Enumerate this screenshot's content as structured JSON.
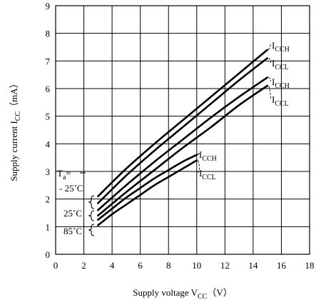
{
  "chart_data": {
    "type": "line",
    "xlabel_main": "Supply voltage V",
    "xlabel_sub": "CC",
    "xlabel_unit": "（V）",
    "ylabel_main": "Supply current I",
    "ylabel_sub": "CC",
    "ylabel_unit": "（mA）",
    "xlim": [
      0,
      18
    ],
    "ylim": [
      0,
      9
    ],
    "x_ticks": [
      0,
      2,
      4,
      6,
      8,
      10,
      12,
      14,
      16,
      18
    ],
    "y_ticks": [
      0,
      1,
      2,
      3,
      4,
      5,
      6,
      7,
      8,
      9
    ],
    "x_tick_labels": [
      "0",
      "2",
      "4",
      "6",
      "8",
      "10",
      "12",
      "14",
      "16",
      "18"
    ],
    "y_tick_labels": [
      "0",
      "1",
      "2",
      "3",
      "4",
      "5",
      "6",
      "7",
      "8",
      "9"
    ],
    "grid": true,
    "series": [
      {
        "name": "I_CCH",
        "x": [
          3,
          5,
          7,
          9,
          11,
          13,
          15
        ],
        "y": [
          2.1,
          3.1,
          4.0,
          4.85,
          5.7,
          6.55,
          7.4
        ]
      },
      {
        "name": "I_CCL",
        "x": [
          3,
          5,
          7,
          9,
          11,
          13,
          15
        ],
        "y": [
          1.85,
          2.85,
          3.75,
          4.6,
          5.45,
          6.3,
          7.1
        ]
      },
      {
        "name": "I_CCH",
        "x": [
          3,
          5,
          7,
          9,
          11,
          13,
          15
        ],
        "y": [
          1.6,
          2.5,
          3.35,
          4.15,
          4.95,
          5.7,
          6.4
        ]
      },
      {
        "name": "I_CCL",
        "x": [
          3,
          5,
          7,
          9,
          11,
          13,
          15
        ],
        "y": [
          1.4,
          2.25,
          3.05,
          3.85,
          4.6,
          5.4,
          6.1
        ]
      },
      {
        "name": "I_CCH",
        "x": [
          3,
          4,
          5,
          6,
          7,
          8,
          9,
          10
        ],
        "y": [
          1.25,
          1.65,
          2.05,
          2.4,
          2.75,
          3.05,
          3.35,
          3.6
        ]
      },
      {
        "name": "I_CCL",
        "x": [
          3,
          4,
          5,
          6,
          7,
          8,
          9,
          10
        ],
        "y": [
          1.05,
          1.45,
          1.8,
          2.15,
          2.5,
          2.8,
          3.1,
          3.4
        ]
      }
    ],
    "curve_labels": [
      {
        "main": "I",
        "sub": "CCH",
        "series": 0
      },
      {
        "main": "I",
        "sub": "CCL",
        "series": 1
      },
      {
        "main": "I",
        "sub": "CCH",
        "series": 2
      },
      {
        "main": "I",
        "sub": "CCL",
        "series": 3
      },
      {
        "main": "I",
        "sub": "CCH",
        "series": 4
      },
      {
        "main": "I",
        "sub": "CCL",
        "series": 5
      }
    ],
    "ta_labels": {
      "title_main": "T",
      "title_sub": "a",
      "title_eq": "=",
      "temp1": "- 25˚C",
      "temp2": "25˚C",
      "temp3": "85˚C"
    }
  }
}
